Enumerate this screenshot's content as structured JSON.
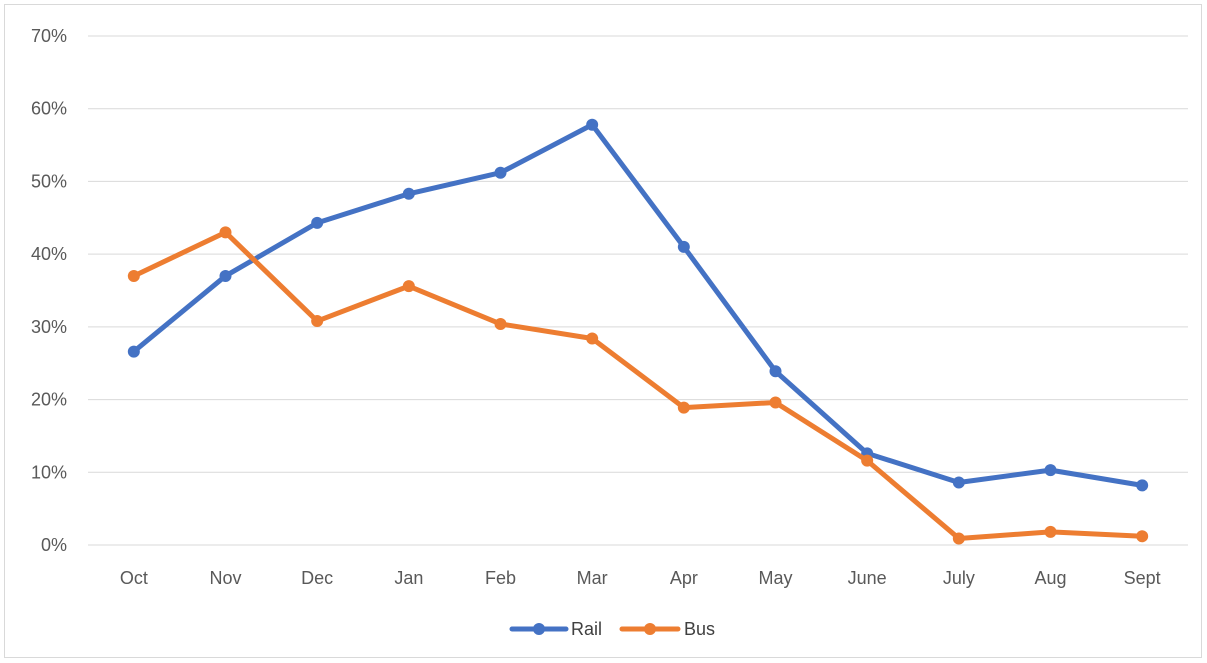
{
  "chart_data": {
    "type": "line",
    "categories": [
      "Oct",
      "Nov",
      "Dec",
      "Jan",
      "Feb",
      "Mar",
      "Apr",
      "May",
      "June",
      "July",
      "Aug",
      "Sept"
    ],
    "series": [
      {
        "name": "Rail",
        "color": "#4472C4",
        "values": [
          26.6,
          37.0,
          44.3,
          48.3,
          51.2,
          57.8,
          41.0,
          23.9,
          12.6,
          8.6,
          10.3,
          8.2
        ]
      },
      {
        "name": "Bus",
        "color": "#ED7D31",
        "values": [
          37.0,
          43.0,
          30.8,
          35.6,
          30.4,
          28.4,
          18.9,
          19.6,
          11.6,
          0.9,
          1.8,
          1.2
        ]
      }
    ],
    "ylim": [
      0,
      70
    ],
    "yticks": [
      "0%",
      "10%",
      "20%",
      "30%",
      "40%",
      "50%",
      "60%",
      "70%"
    ],
    "ytick_values": [
      0,
      10,
      20,
      30,
      40,
      50,
      60,
      70
    ],
    "grid": true,
    "legend_position": "bottom",
    "title": "",
    "xlabel": "",
    "ylabel": ""
  }
}
